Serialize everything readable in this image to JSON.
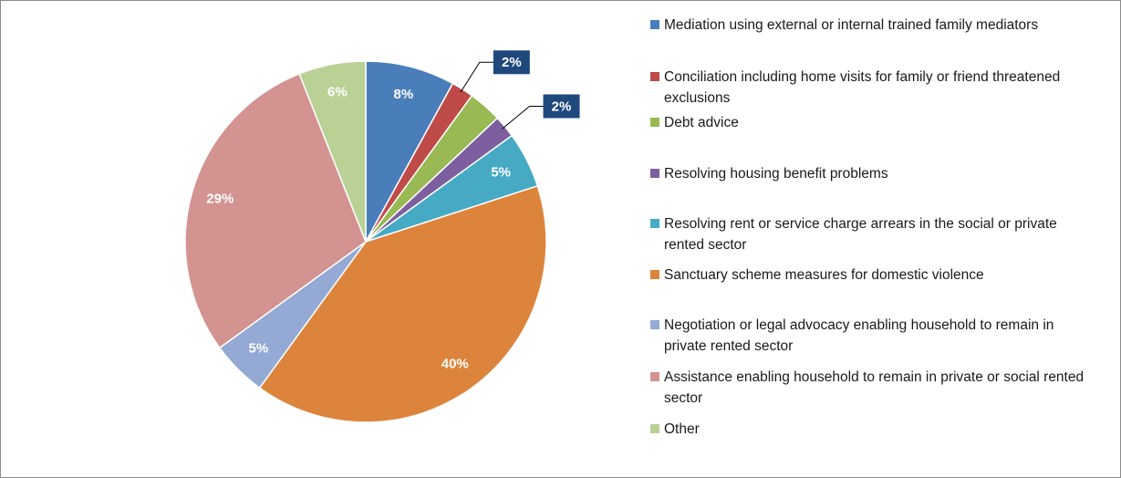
{
  "chart_data": {
    "type": "pie",
    "categories": [
      "Mediation using external or internal trained family mediators",
      "Conciliation including home visits for family or friend threatened exclusions",
      "Debt advice",
      "Resolving housing benefit problems",
      "Resolving rent or service charge arrears in the social or private rented sector",
      "Sanctuary scheme measures for domestic violence",
      "Negotiation or legal advocacy enabling household to remain in private rented sector",
      "Assistance enabling household to remain in private or social rented sector",
      "Other"
    ],
    "values": [
      8,
      2,
      3,
      2,
      5,
      40,
      5,
      29,
      6
    ],
    "value_labels": [
      "8%",
      "2%",
      null,
      "2%",
      "5%",
      "40%",
      "5%",
      "29%",
      "6%"
    ],
    "colors": [
      "#4a7ebb",
      "#be4b48",
      "#98b954",
      "#7d5fa0",
      "#46aac5",
      "#dd843c",
      "#94a9d4",
      "#d29391",
      "#bad195"
    ],
    "legend": "right"
  }
}
